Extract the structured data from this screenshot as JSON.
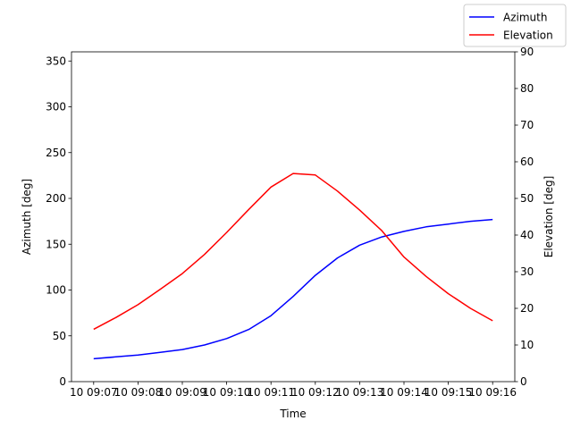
{
  "chart_data": {
    "type": "line",
    "xlabel": "Time",
    "x_ticks": [
      "10 09:07",
      "10 09:08",
      "10 09:09",
      "10 09:10",
      "10 09:11",
      "10 09:12",
      "10 09:13",
      "10 09:14",
      "10 09:15",
      "10 09:16"
    ],
    "x_minutes": [
      0.0,
      0.5,
      1.0,
      1.5,
      2.0,
      2.5,
      3.0,
      3.5,
      4.0,
      4.5,
      5.0,
      5.5,
      6.0,
      6.5,
      7.0,
      7.5,
      8.0,
      8.5,
      9.0
    ],
    "xlim_minutes": [
      -0.5,
      9.5
    ],
    "left_axis": {
      "label": "Azimuth [deg]",
      "ylim": [
        0,
        360
      ],
      "ticks": [
        0,
        50,
        100,
        150,
        200,
        250,
        300,
        350
      ]
    },
    "right_axis": {
      "label": "Elevation [deg]",
      "ylim": [
        0,
        90
      ],
      "ticks": [
        0,
        10,
        20,
        30,
        40,
        50,
        60,
        70,
        80,
        90
      ]
    },
    "series": [
      {
        "name": "Azimuth",
        "axis": "left",
        "color": "#0000ff",
        "values": [
          25,
          27,
          29,
          32,
          35,
          40,
          47,
          57,
          72,
          93,
          116,
          135,
          149,
          158,
          164,
          169,
          172,
          175,
          177
        ]
      },
      {
        "name": "Elevation",
        "axis": "right",
        "color": "#ff0000",
        "values": [
          14.3,
          17.5,
          21.0,
          25.2,
          29.5,
          34.7,
          40.7,
          47.0,
          53.1,
          56.8,
          56.4,
          52.0,
          46.8,
          41.2,
          34.0,
          28.7,
          24.0,
          20.0,
          16.6
        ]
      }
    ],
    "legend": {
      "position": "top-right"
    },
    "grid": false
  }
}
